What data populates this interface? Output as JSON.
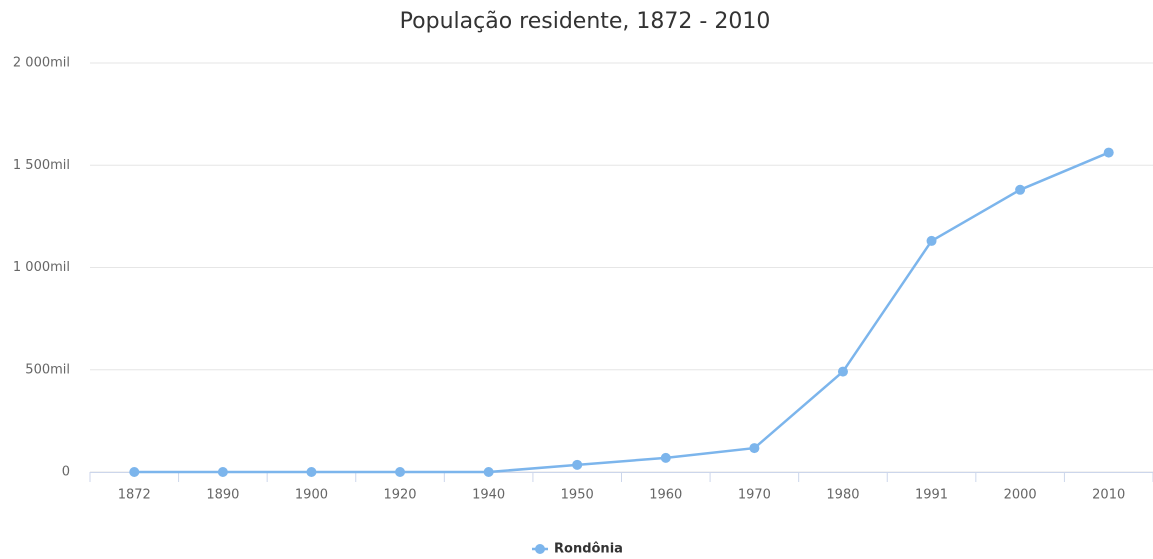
{
  "chart_data": {
    "type": "line",
    "title": "População residente, 1872 - 2010",
    "categories": [
      "1872",
      "1890",
      "1900",
      "1920",
      "1940",
      "1950",
      "1960",
      "1970",
      "1980",
      "1991",
      "2000",
      "2010"
    ],
    "series": [
      {
        "name": "Rondônia",
        "color": "#7cb5ec",
        "values": [
          0,
          0,
          0,
          0,
          0,
          35,
          69,
          117,
          491,
          1130,
          1380,
          1562
        ]
      }
    ],
    "ylim": [
      0,
      2000
    ],
    "yticks": [
      0,
      {
        "value": 500,
        "label": "500mil"
      },
      {
        "value": 1000,
        "label": "1 000mil"
      },
      {
        "value": 1500,
        "label": "1 500mil"
      },
      {
        "value": 2000,
        "label": "2 000mil"
      }
    ],
    "grid": true
  }
}
